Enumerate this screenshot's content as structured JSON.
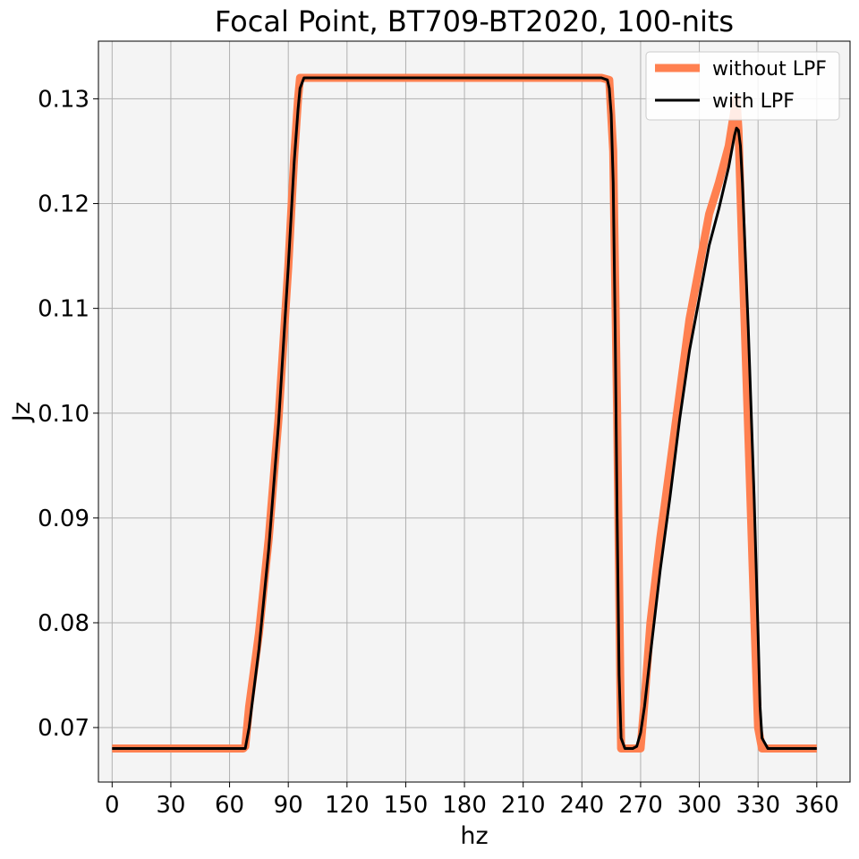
{
  "chart_data": {
    "type": "line",
    "title": "Focal Point,  BT709-BT2020,   100-nits",
    "xlabel": "hz",
    "ylabel": "Jz",
    "xlim": [
      -7,
      377
    ],
    "ylim": [
      0.0648,
      0.1355
    ],
    "xticks": [
      0,
      30,
      60,
      90,
      120,
      150,
      180,
      210,
      240,
      270,
      300,
      330,
      360
    ],
    "xtick_labels": [
      "0",
      "30",
      "60",
      "90",
      "120",
      "150",
      "180",
      "210",
      "240",
      "270",
      "300",
      "330",
      "360"
    ],
    "yticks": [
      0.07,
      0.08,
      0.09,
      0.1,
      0.11,
      0.12,
      0.13
    ],
    "ytick_labels": [
      "0.07",
      "0.08",
      "0.09",
      "0.10",
      "0.11",
      "0.12",
      "0.13"
    ],
    "grid": true,
    "legend_position": "top-right",
    "background_color": "#f4f4f4",
    "series": [
      {
        "name": "without LPF",
        "color": "#ff8050",
        "x": [
          0,
          67,
          68,
          70,
          75,
          80,
          85,
          90,
          93,
          95,
          96,
          97,
          100,
          150,
          200,
          250,
          254,
          256,
          258,
          260,
          270,
          272,
          275,
          280,
          285,
          290,
          295,
          300,
          305,
          310,
          315,
          318,
          319,
          320,
          322,
          325,
          328,
          330,
          332,
          360
        ],
        "y": [
          0.068,
          0.068,
          0.0682,
          0.072,
          0.079,
          0.088,
          0.0995,
          0.114,
          0.1245,
          0.13,
          0.132,
          0.132,
          0.132,
          0.132,
          0.132,
          0.132,
          0.1318,
          0.125,
          0.1,
          0.068,
          0.068,
          0.0725,
          0.08,
          0.088,
          0.095,
          0.102,
          0.109,
          0.114,
          0.119,
          0.122,
          0.1255,
          0.129,
          0.13,
          0.127,
          0.115,
          0.098,
          0.081,
          0.07,
          0.068,
          0.068
        ]
      },
      {
        "name": "with LPF",
        "color": "#000000",
        "x": [
          0,
          68,
          70,
          75,
          80,
          85,
          90,
          93,
          95,
          96,
          98,
          100,
          150,
          200,
          250,
          253,
          254,
          255,
          256,
          257,
          258,
          259,
          260,
          262,
          266,
          268,
          270,
          272,
          275,
          280,
          285,
          290,
          295,
          300,
          305,
          310,
          315,
          318,
          319,
          320,
          321,
          322,
          325,
          328,
          330,
          331,
          332,
          335,
          360
        ],
        "y": [
          0.068,
          0.068,
          0.07,
          0.0775,
          0.087,
          0.099,
          0.114,
          0.124,
          0.129,
          0.131,
          0.132,
          0.132,
          0.132,
          0.132,
          0.132,
          0.1318,
          0.131,
          0.1285,
          0.122,
          0.108,
          0.09,
          0.075,
          0.069,
          0.068,
          0.068,
          0.0682,
          0.0695,
          0.072,
          0.077,
          0.085,
          0.092,
          0.0995,
          0.106,
          0.111,
          0.116,
          0.1195,
          0.1235,
          0.1265,
          0.1272,
          0.127,
          0.1255,
          0.122,
          0.108,
          0.092,
          0.079,
          0.072,
          0.069,
          0.068,
          0.068
        ]
      }
    ]
  }
}
